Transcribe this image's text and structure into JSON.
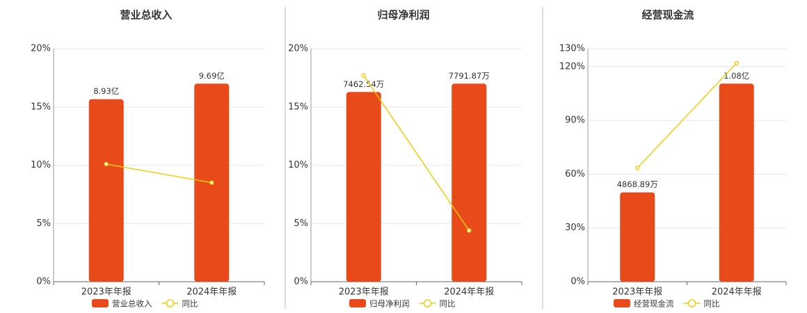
{
  "chart_data": [
    {
      "type": "bar",
      "title": "营业总收入",
      "categories": [
        "2023年年报",
        "2024年年报"
      ],
      "series": [
        {
          "name": "营业总收入",
          "type": "bar",
          "color": "#e84a1a",
          "values": [
            893000000,
            969000000
          ],
          "value_labels": [
            "8.93亿",
            "9.69亿"
          ]
        },
        {
          "name": "同比",
          "type": "line",
          "color": "#f2cc0c",
          "values": [
            10.1,
            8.5
          ]
        }
      ],
      "ylim": [
        0,
        20
      ],
      "yticks": [
        {
          "value": 0,
          "label": "0%"
        },
        {
          "value": 5,
          "label": "5%"
        },
        {
          "value": 10,
          "label": "10%"
        },
        {
          "value": 15,
          "label": "15%"
        },
        {
          "value": 20,
          "label": "20%"
        }
      ],
      "grid": true
    },
    {
      "type": "bar",
      "title": "归母净利润",
      "categories": [
        "2023年年报",
        "2024年年报"
      ],
      "series": [
        {
          "name": "归母净利润",
          "type": "bar",
          "color": "#e84a1a",
          "values": [
            74625400,
            77918700
          ],
          "value_labels": [
            "7462.54万",
            "7791.87万"
          ]
        },
        {
          "name": "同比",
          "type": "line",
          "color": "#f2cc0c",
          "values": [
            17.7,
            4.4
          ]
        }
      ],
      "ylim": [
        0,
        20
      ],
      "yticks": [
        {
          "value": 0,
          "label": "0%"
        },
        {
          "value": 5,
          "label": "5%"
        },
        {
          "value": 10,
          "label": "10%"
        },
        {
          "value": 15,
          "label": "15%"
        },
        {
          "value": 20,
          "label": "20%"
        }
      ],
      "grid": true
    },
    {
      "type": "bar",
      "title": "经营现金流",
      "categories": [
        "2023年年报",
        "2024年年报"
      ],
      "series": [
        {
          "name": "经营现金流",
          "type": "bar",
          "color": "#e84a1a",
          "values": [
            48688900,
            108000000
          ],
          "value_labels": [
            "4868.89万",
            "1.08亿"
          ]
        },
        {
          "name": "同比",
          "type": "line",
          "color": "#f2cc0c",
          "values": [
            63.5,
            122
          ]
        }
      ],
      "ylim": [
        0,
        130
      ],
      "yticks": [
        {
          "value": 0,
          "label": "0%"
        },
        {
          "value": 30,
          "label": "30%"
        },
        {
          "value": 60,
          "label": "60%"
        },
        {
          "value": 90,
          "label": "90%"
        },
        {
          "value": 120,
          "label": "120%"
        },
        {
          "value": 130,
          "label": "130%"
        }
      ],
      "grid": true
    }
  ]
}
